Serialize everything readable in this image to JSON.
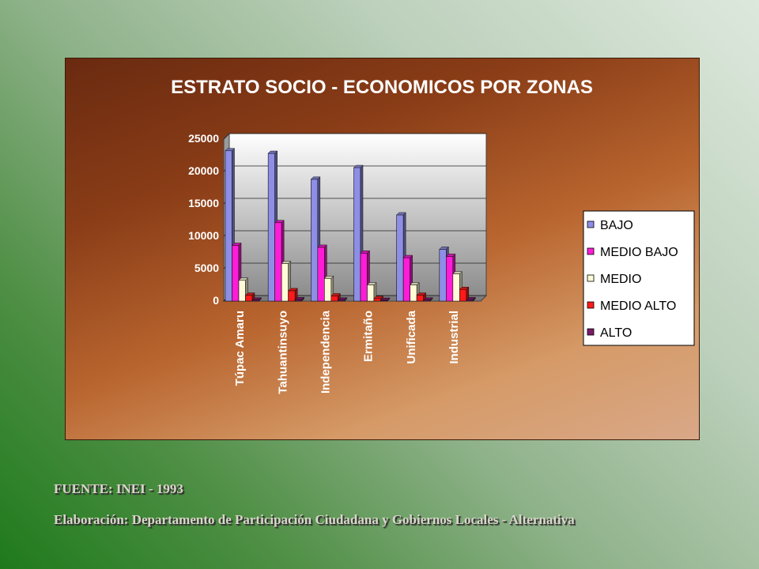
{
  "chart_data": {
    "type": "bar",
    "title": "ESTRATO SOCIO - ECONOMICOS POR ZONAS",
    "categories": [
      "Túpac Amaru",
      "Tahuantinsuyo",
      "Independencia",
      "Ermitaño",
      "Unificada",
      "Industrial"
    ],
    "series": [
      {
        "name": "BAJO",
        "color": "#8e8ee6",
        "values": [
          23200,
          22800,
          18800,
          20600,
          13300,
          8000
        ]
      },
      {
        "name": "MEDIO BAJO",
        "color": "#ff1cd8",
        "values": [
          8600,
          12100,
          8300,
          7400,
          6700,
          6900
        ]
      },
      {
        "name": "MEDIO",
        "color": "#fffbd6",
        "values": [
          3200,
          5800,
          3500,
          2500,
          2500,
          4200
        ]
      },
      {
        "name": "MEDIO ALTO",
        "color": "#ff1a1a",
        "values": [
          900,
          1600,
          800,
          400,
          900,
          1800
        ]
      },
      {
        "name": "ALTO",
        "color": "#7a1a6a",
        "values": [
          150,
          200,
          150,
          120,
          150,
          200
        ]
      }
    ],
    "yticks": [
      "25000",
      "20000",
      "15000",
      "10000",
      "5000",
      "0"
    ],
    "ylim": [
      0,
      25000
    ],
    "grid": true,
    "legend": "right"
  },
  "footer": {
    "source": "FUENTE: INEI - 1993",
    "credit": "Elaboración: Departamento de Participación Ciudadana y Gobiernos Locales  - Alternativa"
  }
}
